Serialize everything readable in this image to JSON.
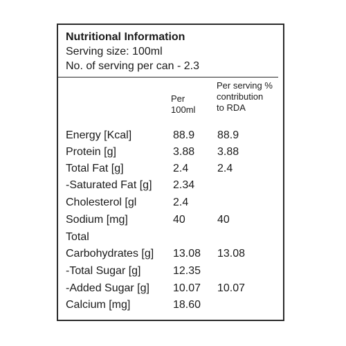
{
  "title": "Nutritional Information",
  "serving_size": "Serving size: 100ml",
  "servings_per_can": "No. of serving per can - 2.3",
  "columns": {
    "per_100ml": "Per\n100ml",
    "per_serving": "Per serving %\ncontribution\nto RDA"
  },
  "rows": [
    {
      "name": "Energy [Kcal]",
      "per100": "88.9",
      "perServing": "88.9"
    },
    {
      "name": "Protein [g]",
      "per100": "3.88",
      "perServing": "3.88"
    },
    {
      "name": "Total Fat [g]",
      "per100": "2.4",
      "perServing": "2.4"
    },
    {
      "name": "-Saturated Fat [g]",
      "per100": "2.34",
      "perServing": ""
    },
    {
      "name": "Cholesterol [gl",
      "per100": "2.4",
      "perServing": ""
    },
    {
      "name": "Sodium [mg]",
      "per100": "40",
      "perServing": "40"
    },
    {
      "name": "Total",
      "per100": "",
      "perServing": ""
    },
    {
      "name": "Carbohydrates [g]",
      "per100": "13.08",
      "perServing": "13.08"
    },
    {
      "name": "-Total Sugar [g]",
      "per100": "12.35",
      "perServing": ""
    },
    {
      "name": "-Added Sugar [g]",
      "per100": "10.07",
      "perServing": "10.07"
    },
    {
      "name": "Calcium [mg]",
      "per100": "18.60",
      "perServing": ""
    }
  ]
}
